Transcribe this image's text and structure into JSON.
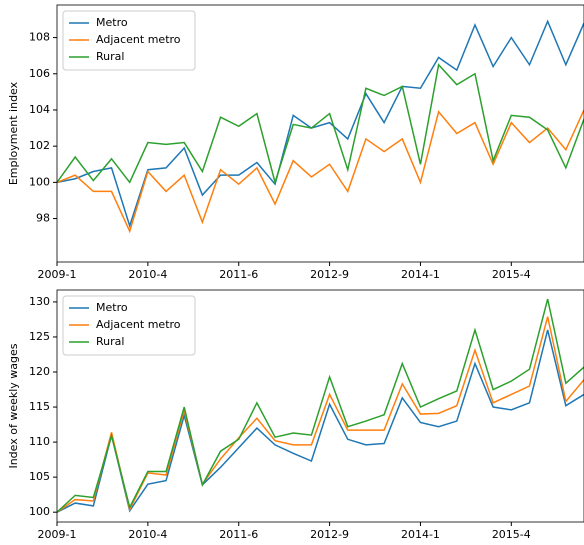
{
  "chart_data": [
    {
      "type": "line",
      "y_label": "Employment index",
      "categories": [
        "2009-1",
        null,
        null,
        null,
        null,
        "2010-4",
        null,
        null,
        null,
        null,
        "2011-6",
        null,
        null,
        null,
        null,
        "2012-9",
        null,
        null,
        null,
        null,
        "2014-1",
        null,
        null,
        null,
        null,
        "2015-4",
        null,
        null,
        null,
        null
      ],
      "series": [
        {
          "name": "Metro",
          "color": "#1f77b4",
          "values": [
            100.0,
            100.2,
            100.6,
            100.8,
            97.6,
            100.7,
            100.8,
            101.9,
            99.3,
            100.4,
            100.4,
            101.1,
            99.9,
            103.7,
            103.0,
            103.3,
            102.4,
            104.9,
            103.3,
            105.3,
            105.2,
            106.9,
            106.2,
            108.7,
            106.4,
            108.0,
            106.5,
            108.9,
            106.5,
            108.8
          ]
        },
        {
          "name": "Adjacent metro",
          "color": "#ff7f0e",
          "values": [
            100.0,
            100.4,
            99.5,
            99.5,
            97.3,
            100.6,
            99.5,
            100.4,
            97.8,
            100.7,
            99.9,
            100.8,
            98.8,
            101.2,
            100.3,
            101.0,
            99.5,
            102.4,
            101.7,
            102.4,
            100.0,
            103.9,
            102.7,
            103.3,
            101.0,
            103.3,
            102.2,
            103.0,
            101.8,
            104.0
          ]
        },
        {
          "name": "Rural",
          "color": "#2ca02c",
          "values": [
            100.0,
            101.4,
            100.1,
            101.3,
            100.0,
            102.2,
            102.1,
            102.2,
            100.6,
            103.6,
            103.1,
            103.8,
            100.0,
            103.2,
            103.0,
            103.8,
            100.7,
            105.2,
            104.8,
            105.3,
            101.0,
            106.5,
            105.4,
            106.0,
            101.2,
            103.7,
            103.6,
            102.9,
            100.8,
            103.5
          ]
        }
      ],
      "ylim": [
        95.6,
        109.8
      ],
      "yticks": [
        98,
        100,
        102,
        104,
        106,
        108
      ],
      "grid": false,
      "legend": "upper left"
    },
    {
      "type": "line",
      "y_label": "Index of weekly wages",
      "categories": [
        "2009-1",
        null,
        null,
        null,
        null,
        "2010-4",
        null,
        null,
        null,
        null,
        "2011-6",
        null,
        null,
        null,
        null,
        "2012-9",
        null,
        null,
        null,
        null,
        "2014-1",
        null,
        null,
        null,
        null,
        "2015-4",
        null,
        null,
        null,
        null
      ],
      "series": [
        {
          "name": "Metro",
          "color": "#1f77b4",
          "values": [
            100.0,
            101.3,
            100.9,
            111.0,
            100.2,
            104.0,
            104.5,
            113.8,
            103.9,
            106.4,
            109.2,
            112.0,
            109.6,
            108.4,
            107.3,
            115.4,
            110.4,
            109.6,
            109.8,
            116.3,
            112.8,
            112.2,
            113.0,
            121.2,
            115.0,
            114.6,
            115.6,
            126.0,
            115.2,
            116.8
          ]
        },
        {
          "name": "Adjacent metro",
          "color": "#ff7f0e",
          "values": [
            100.0,
            101.8,
            101.6,
            111.4,
            100.4,
            105.6,
            105.3,
            114.5,
            104.0,
            107.6,
            110.6,
            113.4,
            110.2,
            109.6,
            109.6,
            116.8,
            111.7,
            111.7,
            111.7,
            118.3,
            114.0,
            114.1,
            115.2,
            123.1,
            115.6,
            116.8,
            118.0,
            127.9,
            115.8,
            118.9
          ]
        },
        {
          "name": "Rural",
          "color": "#2ca02c",
          "values": [
            100.0,
            102.4,
            102.1,
            110.9,
            100.7,
            105.8,
            105.8,
            115.0,
            103.9,
            108.7,
            110.4,
            115.6,
            110.7,
            111.3,
            111.0,
            119.3,
            112.2,
            113.0,
            113.9,
            121.2,
            115.0,
            116.2,
            117.3,
            126.0,
            117.5,
            118.7,
            120.4,
            130.4,
            118.4,
            120.7
          ]
        }
      ],
      "ylim": [
        98.6,
        131.7
      ],
      "yticks": [
        100,
        105,
        110,
        115,
        120,
        125,
        130
      ],
      "grid": false,
      "legend": "upper left"
    }
  ]
}
